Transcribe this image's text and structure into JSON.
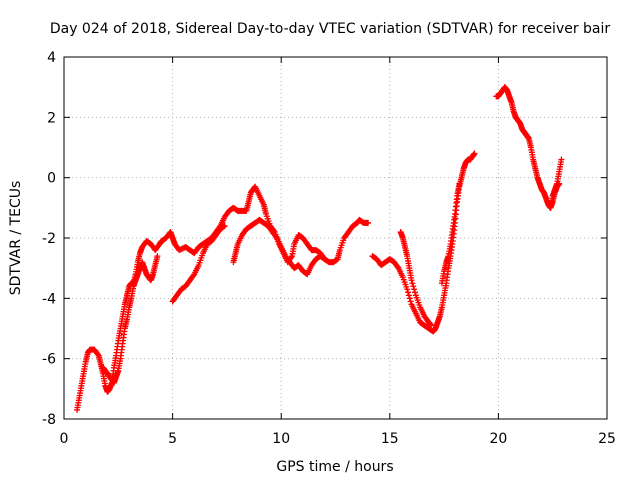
{
  "chart_data": {
    "type": "scatter",
    "title": "Day 024 of 2018, Sidereal Day-to-day VTEC variation (SDTVAR) for receiver bair",
    "xlabel": "GPS time / hours",
    "ylabel": "SDTVAR / TECUs",
    "xlim": [
      0,
      25
    ],
    "ylim": [
      -8,
      4
    ],
    "xticks": [
      0,
      5,
      10,
      15,
      20,
      25
    ],
    "yticks": [
      -8,
      -6,
      -4,
      -2,
      0,
      2,
      4
    ],
    "xtick_labels": [
      "0",
      "5",
      "10",
      "15",
      "20",
      "25"
    ],
    "ytick_labels": [
      "-8",
      "-6",
      "-4",
      "-2",
      "0",
      "2",
      "4"
    ],
    "grid": true,
    "legend": "none",
    "marker": "+",
    "colors": {
      "series": "#ff0000",
      "grid": "#b0b0b0",
      "axes": "#000000"
    },
    "series": [
      {
        "name": "segment-1",
        "points": [
          [
            0.6,
            -7.7
          ],
          [
            0.7,
            -7.3
          ],
          [
            0.8,
            -6.9
          ],
          [
            0.9,
            -6.5
          ],
          [
            1.0,
            -6.1
          ],
          [
            1.1,
            -5.8
          ],
          [
            1.2,
            -5.7
          ],
          [
            1.4,
            -5.7
          ],
          [
            1.6,
            -5.9
          ],
          [
            1.7,
            -6.2
          ],
          [
            1.8,
            -6.5
          ],
          [
            1.9,
            -6.9
          ],
          [
            2.0,
            -7.1
          ],
          [
            2.1,
            -7.0
          ],
          [
            2.2,
            -6.8
          ],
          [
            2.3,
            -6.3
          ],
          [
            2.4,
            -5.9
          ],
          [
            2.5,
            -5.4
          ],
          [
            2.6,
            -5.0
          ],
          [
            2.7,
            -4.6
          ],
          [
            2.8,
            -4.2
          ],
          [
            2.9,
            -3.9
          ],
          [
            3.0,
            -3.6
          ],
          [
            3.1,
            -3.5
          ],
          [
            3.2,
            -3.5
          ],
          [
            3.3,
            -3.2
          ],
          [
            3.4,
            -2.8
          ],
          [
            3.5,
            -2.5
          ],
          [
            3.6,
            -2.3
          ],
          [
            3.8,
            -2.1
          ],
          [
            4.0,
            -2.2
          ],
          [
            4.2,
            -2.4
          ],
          [
            4.4,
            -2.2
          ],
          [
            4.5,
            -2.1
          ],
          [
            4.7,
            -2.0
          ],
          [
            4.9,
            -1.8
          ],
          [
            5.0,
            -2.0
          ],
          [
            5.1,
            -2.2
          ],
          [
            5.3,
            -2.4
          ],
          [
            5.6,
            -2.3
          ],
          [
            5.8,
            -2.4
          ],
          [
            6.0,
            -2.5
          ],
          [
            6.2,
            -2.3
          ],
          [
            6.4,
            -2.2
          ],
          [
            6.6,
            -2.1
          ],
          [
            6.8,
            -2.0
          ],
          [
            7.0,
            -1.8
          ],
          [
            7.2,
            -1.6
          ],
          [
            7.4,
            -1.3
          ],
          [
            7.6,
            -1.1
          ],
          [
            7.8,
            -1.0
          ],
          [
            8.0,
            -1.1
          ],
          [
            8.2,
            -1.1
          ],
          [
            8.4,
            -1.1
          ],
          [
            8.5,
            -0.8
          ],
          [
            8.6,
            -0.5
          ],
          [
            8.7,
            -0.4
          ],
          [
            8.8,
            -0.3
          ],
          [
            9.0,
            -0.6
          ],
          [
            9.2,
            -0.9
          ],
          [
            9.3,
            -1.2
          ],
          [
            9.5,
            -1.6
          ],
          [
            9.7,
            -1.8
          ],
          [
            9.9,
            -2.2
          ],
          [
            10.1,
            -2.5
          ],
          [
            10.3,
            -2.8
          ],
          [
            10.5,
            -2.6
          ],
          [
            10.6,
            -2.2
          ],
          [
            10.8,
            -1.9
          ],
          [
            11.0,
            -2.0
          ],
          [
            11.2,
            -2.2
          ],
          [
            11.4,
            -2.4
          ],
          [
            11.6,
            -2.4
          ],
          [
            11.8,
            -2.5
          ],
          [
            12.0,
            -2.7
          ],
          [
            12.2,
            -2.8
          ],
          [
            12.4,
            -2.8
          ],
          [
            12.6,
            -2.7
          ],
          [
            12.7,
            -2.4
          ],
          [
            12.9,
            -2.0
          ],
          [
            13.1,
            -1.8
          ],
          [
            13.3,
            -1.6
          ],
          [
            13.5,
            -1.5
          ],
          [
            13.6,
            -1.4
          ],
          [
            13.8,
            -1.5
          ],
          [
            14.0,
            -1.5
          ]
        ]
      },
      {
        "name": "segment-2",
        "points": [
          [
            1.8,
            -6.3
          ],
          [
            1.9,
            -6.4
          ],
          [
            2.0,
            -6.5
          ],
          [
            2.1,
            -6.6
          ],
          [
            2.2,
            -6.7
          ],
          [
            2.3,
            -6.8
          ],
          [
            2.4,
            -6.6
          ],
          [
            2.5,
            -6.4
          ],
          [
            2.6,
            -6.0
          ],
          [
            2.7,
            -5.5
          ],
          [
            2.8,
            -5.0
          ],
          [
            2.9,
            -4.7
          ],
          [
            3.0,
            -4.3
          ],
          [
            3.1,
            -4.0
          ],
          [
            3.2,
            -3.6
          ],
          [
            3.3,
            -3.4
          ],
          [
            3.4,
            -3.2
          ],
          [
            3.5,
            -3.0
          ],
          [
            3.6,
            -2.8
          ],
          [
            3.7,
            -3.0
          ],
          [
            3.8,
            -3.2
          ],
          [
            3.9,
            -3.3
          ],
          [
            4.0,
            -3.4
          ],
          [
            4.1,
            -3.2
          ],
          [
            4.2,
            -2.9
          ],
          [
            4.3,
            -2.6
          ]
        ]
      },
      {
        "name": "segment-3",
        "points": [
          [
            5.0,
            -4.1
          ],
          [
            5.2,
            -3.9
          ],
          [
            5.4,
            -3.7
          ],
          [
            5.6,
            -3.6
          ],
          [
            5.8,
            -3.4
          ],
          [
            6.0,
            -3.2
          ],
          [
            6.2,
            -2.9
          ],
          [
            6.4,
            -2.5
          ],
          [
            6.6,
            -2.2
          ],
          [
            6.8,
            -2.1
          ],
          [
            7.0,
            -1.9
          ],
          [
            7.2,
            -1.7
          ],
          [
            7.4,
            -1.6
          ]
        ]
      },
      {
        "name": "segment-4",
        "points": [
          [
            7.8,
            -2.8
          ],
          [
            7.9,
            -2.5
          ],
          [
            8.0,
            -2.2
          ],
          [
            8.2,
            -1.9
          ],
          [
            8.4,
            -1.7
          ],
          [
            8.6,
            -1.6
          ],
          [
            8.8,
            -1.5
          ],
          [
            9.0,
            -1.4
          ],
          [
            9.2,
            -1.5
          ],
          [
            9.4,
            -1.6
          ],
          [
            9.6,
            -1.8
          ],
          [
            9.8,
            -2.0
          ],
          [
            10.0,
            -2.3
          ],
          [
            10.2,
            -2.6
          ],
          [
            10.4,
            -2.8
          ],
          [
            10.6,
            -3.0
          ],
          [
            10.8,
            -2.9
          ],
          [
            11.0,
            -3.1
          ],
          [
            11.2,
            -3.2
          ],
          [
            11.4,
            -2.9
          ],
          [
            11.6,
            -2.7
          ],
          [
            11.8,
            -2.6
          ],
          [
            12.0,
            -2.7
          ]
        ]
      },
      {
        "name": "segment-5",
        "points": [
          [
            14.2,
            -2.6
          ],
          [
            14.4,
            -2.7
          ],
          [
            14.6,
            -2.9
          ],
          [
            14.8,
            -2.8
          ],
          [
            15.0,
            -2.7
          ],
          [
            15.2,
            -2.8
          ],
          [
            15.4,
            -3.0
          ],
          [
            15.6,
            -3.3
          ],
          [
            15.8,
            -3.7
          ],
          [
            16.0,
            -4.2
          ],
          [
            16.2,
            -4.5
          ],
          [
            16.4,
            -4.8
          ],
          [
            16.6,
            -4.9
          ],
          [
            16.8,
            -5.0
          ],
          [
            17.0,
            -5.1
          ],
          [
            17.1,
            -5.0
          ],
          [
            17.2,
            -4.8
          ],
          [
            17.3,
            -4.6
          ],
          [
            17.4,
            -4.3
          ],
          [
            17.5,
            -3.9
          ],
          [
            17.6,
            -3.5
          ],
          [
            17.7,
            -3.0
          ],
          [
            17.8,
            -2.6
          ],
          [
            17.9,
            -2.1
          ],
          [
            18.0,
            -1.5
          ],
          [
            18.1,
            -0.8
          ],
          [
            18.2,
            -0.3
          ],
          [
            18.3,
            0.0
          ],
          [
            18.4,
            0.3
          ],
          [
            18.5,
            0.5
          ],
          [
            18.6,
            0.6
          ],
          [
            18.7,
            0.6
          ],
          [
            18.8,
            0.7
          ],
          [
            18.9,
            0.8
          ]
        ]
      },
      {
        "name": "segment-6",
        "points": [
          [
            15.5,
            -1.8
          ],
          [
            15.6,
            -2.0
          ],
          [
            15.7,
            -2.3
          ],
          [
            15.8,
            -2.6
          ],
          [
            15.9,
            -3.0
          ],
          [
            16.0,
            -3.4
          ],
          [
            16.2,
            -3.9
          ],
          [
            16.4,
            -4.3
          ],
          [
            16.6,
            -4.6
          ],
          [
            16.8,
            -4.8
          ],
          [
            16.9,
            -4.9
          ]
        ]
      },
      {
        "name": "segment-7",
        "points": [
          [
            17.4,
            -3.5
          ],
          [
            17.5,
            -3.1
          ],
          [
            17.6,
            -2.8
          ],
          [
            17.7,
            -2.6
          ],
          [
            17.8,
            -2.2
          ],
          [
            17.9,
            -1.7
          ],
          [
            18.0,
            -1.2
          ],
          [
            18.1,
            -0.6
          ],
          [
            18.2,
            -0.2
          ]
        ]
      },
      {
        "name": "segment-8",
        "points": [
          [
            19.9,
            2.7
          ],
          [
            20.0,
            2.7
          ],
          [
            20.1,
            2.8
          ],
          [
            20.2,
            2.9
          ],
          [
            20.3,
            3.0
          ],
          [
            20.4,
            2.9
          ],
          [
            20.5,
            2.7
          ],
          [
            20.6,
            2.5
          ],
          [
            20.7,
            2.2
          ],
          [
            20.8,
            2.0
          ],
          [
            20.9,
            1.9
          ],
          [
            21.0,
            1.8
          ],
          [
            21.1,
            1.6
          ],
          [
            21.2,
            1.5
          ],
          [
            21.3,
            1.4
          ],
          [
            21.4,
            1.3
          ],
          [
            21.5,
            1.0
          ],
          [
            21.6,
            0.6
          ],
          [
            21.7,
            0.3
          ],
          [
            21.8,
            0.0
          ],
          [
            21.9,
            -0.2
          ],
          [
            22.0,
            -0.4
          ],
          [
            22.1,
            -0.5
          ],
          [
            22.2,
            -0.7
          ],
          [
            22.3,
            -0.9
          ],
          [
            22.4,
            -1.0
          ],
          [
            22.5,
            -0.8
          ],
          [
            22.6,
            -0.5
          ],
          [
            22.7,
            -0.3
          ],
          [
            22.8,
            -0.2
          ]
        ]
      },
      {
        "name": "segment-9",
        "points": [
          [
            22.4,
            -1.0
          ],
          [
            22.5,
            -0.6
          ],
          [
            22.6,
            -0.4
          ],
          [
            22.7,
            -0.2
          ],
          [
            22.8,
            0.2
          ],
          [
            22.9,
            0.6
          ]
        ]
      }
    ]
  }
}
